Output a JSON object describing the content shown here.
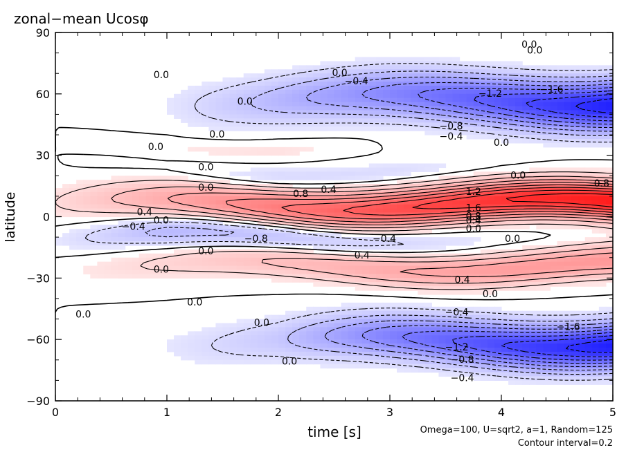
{
  "chart_data": {
    "type": "heatmap",
    "title": "zonal−mean Ucosφ",
    "xlabel": "time [s]",
    "ylabel": "latitude",
    "xlim": [
      0,
      5
    ],
    "ylim": [
      -90,
      90
    ],
    "xticks": [
      "0",
      "1",
      "2",
      "3",
      "4",
      "5"
    ],
    "yticks": [
      "90",
      "60",
      "30",
      "0",
      "−30",
      "−60",
      "−90"
    ],
    "grid": false,
    "legend": "none",
    "colors": {
      "positive_strong": "#ff1a1a",
      "positive_weak": "#ffe6e6",
      "negative_strong": "#1a1aff",
      "negative_weak": "#e6e6ff"
    },
    "bands": [
      {
        "lat": 57,
        "width": 12,
        "values": [
          0.0,
          -0.1,
          -0.5,
          -0.9,
          -1.3,
          -1.75
        ]
      },
      {
        "lat": 35,
        "width": 5,
        "values": [
          0.0,
          0.1,
          0.15,
          0.0,
          0.0,
          0.0
        ]
      },
      {
        "lat": 22,
        "width": 5,
        "values": [
          0.0,
          -0.05,
          -0.25,
          -0.2,
          -0.05,
          0.0
        ]
      },
      {
        "lat": 6,
        "width": 9,
        "values": [
          0.2,
          0.6,
          1.0,
          1.35,
          1.6,
          1.8
        ]
      },
      {
        "lat": -10,
        "width": 7,
        "values": [
          -0.1,
          -0.5,
          -0.5,
          -0.3,
          -0.1,
          0.0
        ]
      },
      {
        "lat": -24,
        "width": 8,
        "values": [
          0.05,
          0.25,
          0.45,
          0.6,
          0.7,
          0.75
        ]
      },
      {
        "lat": -61,
        "width": 11,
        "values": [
          0.0,
          -0.1,
          -0.35,
          -0.95,
          -1.4,
          -1.75
        ]
      }
    ],
    "contour_labels": [
      {
        "x": 0.95,
        "y": 69,
        "text": "0.0"
      },
      {
        "x": 2.55,
        "y": 70,
        "text": "0.0"
      },
      {
        "x": 2.7,
        "y": 66,
        "text": "−0.4"
      },
      {
        "x": 4.25,
        "y": 84,
        "text": "0.0"
      },
      {
        "x": 3.9,
        "y": 60,
        "text": "−1.2"
      },
      {
        "x": 4.45,
        "y": 62,
        "text": "−1.6"
      },
      {
        "x": 1.7,
        "y": 56,
        "text": "0.0"
      },
      {
        "x": 3.55,
        "y": 44,
        "text": "−0.8"
      },
      {
        "x": 3.55,
        "y": 39,
        "text": "−0.4"
      },
      {
        "x": 4.0,
        "y": 36,
        "text": "0.0"
      },
      {
        "x": 1.45,
        "y": 40,
        "text": "0.0"
      },
      {
        "x": 0.9,
        "y": 34,
        "text": "0.0"
      },
      {
        "x": 1.35,
        "y": 24,
        "text": "0.0"
      },
      {
        "x": 4.15,
        "y": 20,
        "text": "0.0"
      },
      {
        "x": 1.35,
        "y": 14,
        "text": "0.0"
      },
      {
        "x": 2.45,
        "y": 13,
        "text": "0.4"
      },
      {
        "x": 2.2,
        "y": 11,
        "text": "0.8"
      },
      {
        "x": 3.75,
        "y": 12,
        "text": "1.2"
      },
      {
        "x": 4.9,
        "y": 16,
        "text": "0.8"
      },
      {
        "x": 0.8,
        "y": 2,
        "text": "0.4"
      },
      {
        "x": 0.95,
        "y": -2,
        "text": "0.0"
      },
      {
        "x": 3.75,
        "y": 4,
        "text": "1.6"
      },
      {
        "x": 3.75,
        "y": 0,
        "text": "0.8"
      },
      {
        "x": 3.75,
        "y": -2,
        "text": "0.4"
      },
      {
        "x": 3.75,
        "y": -6,
        "text": "0.0"
      },
      {
        "x": 0.7,
        "y": -5,
        "text": "−0.4"
      },
      {
        "x": 1.8,
        "y": -11,
        "text": "−0.8"
      },
      {
        "x": 2.95,
        "y": -11,
        "text": "−0.4"
      },
      {
        "x": 4.1,
        "y": -11,
        "text": "0.0"
      },
      {
        "x": 1.35,
        "y": -17,
        "text": "0.0"
      },
      {
        "x": 2.75,
        "y": -19,
        "text": "0.4"
      },
      {
        "x": 0.95,
        "y": -26,
        "text": "0.0"
      },
      {
        "x": 3.65,
        "y": -31,
        "text": "0.4"
      },
      {
        "x": 3.9,
        "y": -38,
        "text": "0.0"
      },
      {
        "x": 1.25,
        "y": -42,
        "text": "0.0"
      },
      {
        "x": 0.25,
        "y": -48,
        "text": "0.0"
      },
      {
        "x": 3.6,
        "y": -47,
        "text": "−0.4"
      },
      {
        "x": 1.85,
        "y": -52,
        "text": "0.0"
      },
      {
        "x": 3.6,
        "y": -64,
        "text": "−1.2"
      },
      {
        "x": 4.6,
        "y": -54,
        "text": "−1.6"
      },
      {
        "x": 3.65,
        "y": -70,
        "text": "−0.8"
      },
      {
        "x": 2.1,
        "y": -71,
        "text": "0.0"
      },
      {
        "x": 3.65,
        "y": -79,
        "text": "−0.4"
      },
      {
        "x": 4.3,
        "y": 81,
        "text": "0.0"
      }
    ]
  },
  "annotations": {
    "params": "Omega=100, U=sqrt2, a=1, Random=125",
    "interval": "Contour interval=0.2"
  }
}
